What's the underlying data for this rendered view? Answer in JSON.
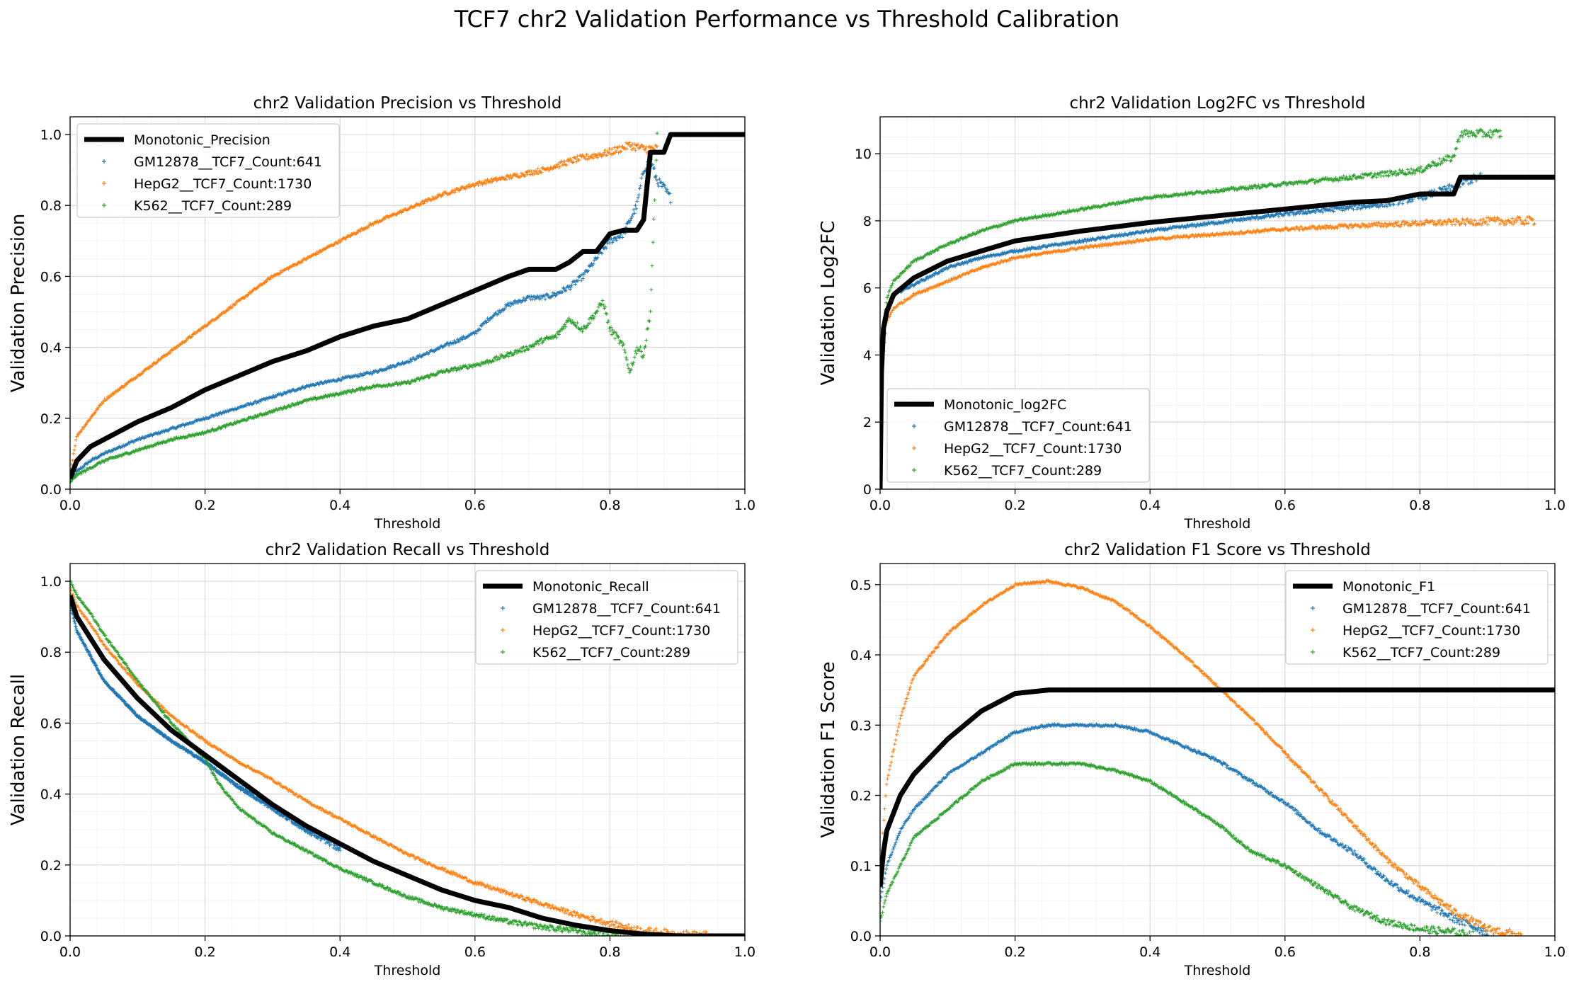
{
  "figure": {
    "suptitle": "TCF7 chr2 Validation Performance vs Threshold Calibration"
  },
  "colors": {
    "GM12878": "#1f77b4",
    "HepG2": "#ff7f0e",
    "K562": "#2ca02c",
    "monotonic": "#000000",
    "grid_major": "#d9d9d9",
    "grid_minor": "#f2f2f2"
  },
  "chart_data": [
    {
      "id": "precision",
      "type": "scatter",
      "title": "chr2 Validation Precision vs Threshold",
      "xlabel": "Threshold",
      "ylabel": "Validation Precision",
      "xlim": [
        0,
        1
      ],
      "ylim": [
        0,
        1.05
      ],
      "xticks": [
        "0.0",
        "0.2",
        "0.4",
        "0.6",
        "0.8",
        "1.0"
      ],
      "yticks": [
        "0.0",
        "0.2",
        "0.4",
        "0.6",
        "0.8",
        "1.0"
      ],
      "grid": true,
      "legend_position": "upper-left",
      "series": [
        {
          "name": "Monotonic_Precision",
          "kind": "line",
          "color_key": "monotonic",
          "x": [
            0,
            0.01,
            0.03,
            0.05,
            0.1,
            0.15,
            0.2,
            0.25,
            0.3,
            0.35,
            0.4,
            0.45,
            0.5,
            0.55,
            0.6,
            0.65,
            0.68,
            0.72,
            0.74,
            0.76,
            0.78,
            0.8,
            0.82,
            0.84,
            0.85,
            0.86,
            0.88,
            0.89,
            0.9,
            1.0
          ],
          "y": [
            0.03,
            0.08,
            0.12,
            0.14,
            0.19,
            0.23,
            0.28,
            0.32,
            0.36,
            0.39,
            0.43,
            0.46,
            0.48,
            0.52,
            0.56,
            0.6,
            0.62,
            0.62,
            0.64,
            0.67,
            0.67,
            0.72,
            0.73,
            0.73,
            0.76,
            0.95,
            0.95,
            1.0,
            1.0,
            1.0
          ]
        },
        {
          "name": "GM12878__TCF7_Count:641",
          "kind": "points",
          "color_key": "GM12878",
          "x": [
            0,
            0.01,
            0.03,
            0.05,
            0.1,
            0.15,
            0.2,
            0.25,
            0.3,
            0.35,
            0.4,
            0.45,
            0.5,
            0.55,
            0.6,
            0.62,
            0.65,
            0.68,
            0.7,
            0.72,
            0.74,
            0.76,
            0.78,
            0.8,
            0.82,
            0.84,
            0.85,
            0.86,
            0.87,
            0.88,
            0.89
          ],
          "y": [
            0.02,
            0.05,
            0.08,
            0.1,
            0.14,
            0.17,
            0.2,
            0.23,
            0.26,
            0.29,
            0.31,
            0.33,
            0.36,
            0.4,
            0.44,
            0.48,
            0.52,
            0.54,
            0.54,
            0.55,
            0.57,
            0.6,
            0.65,
            0.7,
            0.72,
            0.8,
            0.9,
            0.93,
            0.87,
            0.85,
            0.82
          ]
        },
        {
          "name": "HepG2__TCF7_Count:1730",
          "kind": "points",
          "color_key": "HepG2",
          "x": [
            0,
            0.005,
            0.01,
            0.03,
            0.05,
            0.1,
            0.15,
            0.2,
            0.25,
            0.3,
            0.35,
            0.4,
            0.45,
            0.5,
            0.55,
            0.6,
            0.65,
            0.7,
            0.75,
            0.8,
            0.83,
            0.85,
            0.87
          ],
          "y": [
            0.04,
            0.1,
            0.15,
            0.2,
            0.25,
            0.32,
            0.39,
            0.46,
            0.53,
            0.6,
            0.65,
            0.7,
            0.75,
            0.79,
            0.83,
            0.86,
            0.88,
            0.9,
            0.93,
            0.95,
            0.97,
            0.96,
            0.96
          ]
        },
        {
          "name": "K562__TCF7_Count:289",
          "kind": "points",
          "color_key": "K562",
          "x": [
            0,
            0.01,
            0.03,
            0.05,
            0.1,
            0.15,
            0.2,
            0.25,
            0.3,
            0.35,
            0.4,
            0.45,
            0.5,
            0.55,
            0.6,
            0.62,
            0.65,
            0.68,
            0.7,
            0.72,
            0.74,
            0.76,
            0.78,
            0.79,
            0.8,
            0.81,
            0.82,
            0.83,
            0.84,
            0.85,
            0.86,
            0.87
          ],
          "y": [
            0.02,
            0.04,
            0.06,
            0.08,
            0.11,
            0.14,
            0.16,
            0.19,
            0.22,
            0.25,
            0.27,
            0.29,
            0.3,
            0.33,
            0.35,
            0.36,
            0.38,
            0.4,
            0.42,
            0.43,
            0.48,
            0.45,
            0.5,
            0.53,
            0.45,
            0.43,
            0.4,
            0.33,
            0.4,
            0.38,
            0.5,
            1.0
          ]
        }
      ]
    },
    {
      "id": "log2fc",
      "type": "scatter",
      "title": "chr2 Validation Log2FC vs Threshold",
      "xlabel": "Threshold",
      "ylabel": "Validation Log2FC",
      "xlim": [
        0,
        1
      ],
      "ylim": [
        0,
        11.1
      ],
      "xticks": [
        "0.0",
        "0.2",
        "0.4",
        "0.6",
        "0.8",
        "1.0"
      ],
      "yticks": [
        "0",
        "2",
        "4",
        "6",
        "8",
        "10"
      ],
      "grid": true,
      "legend_position": "lower-left",
      "series": [
        {
          "name": "Monotonic_log2FC",
          "kind": "line",
          "color_key": "monotonic",
          "x": [
            0,
            0.002,
            0.005,
            0.01,
            0.02,
            0.05,
            0.1,
            0.15,
            0.2,
            0.3,
            0.4,
            0.5,
            0.6,
            0.7,
            0.75,
            0.8,
            0.85,
            0.86,
            0.87,
            0.9,
            1.0
          ],
          "y": [
            0,
            3.5,
            4.8,
            5.3,
            5.8,
            6.3,
            6.8,
            7.1,
            7.4,
            7.7,
            7.95,
            8.15,
            8.35,
            8.55,
            8.6,
            8.8,
            8.8,
            9.3,
            9.3,
            9.3,
            9.3
          ]
        },
        {
          "name": "GM12878__TCF7_Count:641",
          "kind": "points",
          "color_key": "GM12878",
          "x": [
            0,
            0.01,
            0.02,
            0.05,
            0.1,
            0.15,
            0.2,
            0.3,
            0.4,
            0.5,
            0.6,
            0.7,
            0.75,
            0.8,
            0.85,
            0.87,
            0.89
          ],
          "y": [
            3.5,
            5.3,
            5.8,
            6.1,
            6.6,
            6.9,
            7.1,
            7.4,
            7.7,
            7.95,
            8.2,
            8.4,
            8.5,
            8.7,
            9.0,
            9.2,
            9.3
          ]
        },
        {
          "name": "HepG2__TCF7_Count:1730",
          "kind": "points",
          "color_key": "HepG2",
          "x": [
            0,
            0.01,
            0.02,
            0.05,
            0.1,
            0.15,
            0.2,
            0.3,
            0.4,
            0.5,
            0.6,
            0.7,
            0.8,
            0.9,
            0.97
          ],
          "y": [
            3.0,
            5.0,
            5.4,
            5.8,
            6.2,
            6.6,
            6.9,
            7.2,
            7.45,
            7.6,
            7.75,
            7.85,
            7.93,
            7.98,
            8.0
          ]
        },
        {
          "name": "K562__TCF7_Count:289",
          "kind": "points",
          "color_key": "K562",
          "x": [
            0,
            0.01,
            0.02,
            0.05,
            0.1,
            0.15,
            0.2,
            0.3,
            0.4,
            0.5,
            0.6,
            0.65,
            0.7,
            0.75,
            0.8,
            0.82,
            0.85,
            0.86,
            0.92
          ],
          "y": [
            4.0,
            5.7,
            6.2,
            6.8,
            7.3,
            7.7,
            8.0,
            8.35,
            8.7,
            8.9,
            9.1,
            9.2,
            9.3,
            9.4,
            9.5,
            9.7,
            9.9,
            10.6,
            10.6
          ]
        }
      ]
    },
    {
      "id": "recall",
      "type": "scatter",
      "title": "chr2 Validation Recall vs Threshold",
      "xlabel": "Threshold",
      "ylabel": "Validation Recall",
      "xlim": [
        0,
        1
      ],
      "ylim": [
        0,
        1.05
      ],
      "xticks": [
        "0.0",
        "0.2",
        "0.4",
        "0.6",
        "0.8",
        "1.0"
      ],
      "yticks": [
        "0.0",
        "0.2",
        "0.4",
        "0.6",
        "0.8",
        "1.0"
      ],
      "grid": true,
      "legend_position": "upper-right",
      "series": [
        {
          "name": "Monotonic_Recall",
          "kind": "line",
          "color_key": "monotonic",
          "x": [
            0,
            0.01,
            0.03,
            0.05,
            0.1,
            0.15,
            0.2,
            0.25,
            0.3,
            0.35,
            0.4,
            0.45,
            0.5,
            0.55,
            0.6,
            0.65,
            0.7,
            0.75,
            0.8,
            0.85,
            0.9,
            1.0
          ],
          "y": [
            0.96,
            0.9,
            0.84,
            0.78,
            0.67,
            0.58,
            0.51,
            0.44,
            0.37,
            0.31,
            0.26,
            0.21,
            0.17,
            0.13,
            0.1,
            0.08,
            0.05,
            0.03,
            0.015,
            0.005,
            0.0,
            0.0
          ]
        },
        {
          "name": "GM12878__TCF7_Count:641",
          "kind": "points",
          "color_key": "GM12878",
          "x": [
            0,
            0.01,
            0.03,
            0.05,
            0.1,
            0.15,
            0.2,
            0.25,
            0.3,
            0.35,
            0.4
          ],
          "y": [
            0.94,
            0.86,
            0.79,
            0.72,
            0.62,
            0.55,
            0.49,
            0.42,
            0.36,
            0.3,
            0.25
          ]
        },
        {
          "name": "HepG2__TCF7_Count:1730",
          "kind": "points",
          "color_key": "HepG2",
          "x": [
            0,
            0.01,
            0.03,
            0.05,
            0.1,
            0.15,
            0.2,
            0.25,
            0.3,
            0.35,
            0.4,
            0.45,
            0.5,
            0.55,
            0.6,
            0.65,
            0.7,
            0.75,
            0.8,
            0.85,
            0.9,
            0.95
          ],
          "y": [
            0.98,
            0.93,
            0.88,
            0.82,
            0.71,
            0.62,
            0.55,
            0.49,
            0.44,
            0.38,
            0.33,
            0.28,
            0.23,
            0.19,
            0.15,
            0.12,
            0.09,
            0.06,
            0.035,
            0.015,
            0.005,
            0.0
          ]
        },
        {
          "name": "K562__TCF7_Count:289",
          "kind": "points",
          "color_key": "K562",
          "x": [
            0,
            0.01,
            0.03,
            0.05,
            0.1,
            0.15,
            0.2,
            0.22,
            0.25,
            0.3,
            0.35,
            0.4,
            0.45,
            0.5,
            0.55,
            0.6,
            0.65,
            0.7,
            0.75,
            0.8,
            0.85
          ],
          "y": [
            1.0,
            0.96,
            0.91,
            0.85,
            0.72,
            0.6,
            0.5,
            0.43,
            0.36,
            0.29,
            0.24,
            0.19,
            0.15,
            0.11,
            0.08,
            0.06,
            0.04,
            0.025,
            0.015,
            0.005,
            0.0
          ]
        }
      ]
    },
    {
      "id": "f1",
      "type": "scatter",
      "title": "chr2 Validation F1 Score vs Threshold",
      "xlabel": "Threshold",
      "ylabel": "Validation F1 Score",
      "xlim": [
        0,
        1
      ],
      "ylim": [
        0,
        0.53
      ],
      "xticks": [
        "0.0",
        "0.2",
        "0.4",
        "0.6",
        "0.8",
        "1.0"
      ],
      "yticks": [
        "0.0",
        "0.1",
        "0.2",
        "0.3",
        "0.4",
        "0.5"
      ],
      "grid": true,
      "legend_position": "upper-right",
      "series": [
        {
          "name": "Monotonic_F1",
          "kind": "line",
          "color_key": "monotonic",
          "x": [
            0,
            0.005,
            0.01,
            0.03,
            0.05,
            0.1,
            0.15,
            0.18,
            0.2,
            0.22,
            0.25,
            0.3,
            0.5,
            1.0
          ],
          "y": [
            0.07,
            0.12,
            0.15,
            0.2,
            0.23,
            0.28,
            0.32,
            0.335,
            0.345,
            0.347,
            0.35,
            0.35,
            0.35,
            0.35
          ]
        },
        {
          "name": "GM12878__TCF7_Count:641",
          "kind": "points",
          "color_key": "GM12878",
          "x": [
            0,
            0.01,
            0.03,
            0.05,
            0.1,
            0.15,
            0.2,
            0.25,
            0.3,
            0.35,
            0.4,
            0.45,
            0.5,
            0.55,
            0.6,
            0.65,
            0.7,
            0.75,
            0.8,
            0.85,
            0.9
          ],
          "y": [
            0.05,
            0.1,
            0.15,
            0.18,
            0.23,
            0.26,
            0.29,
            0.3,
            0.3,
            0.3,
            0.29,
            0.27,
            0.25,
            0.22,
            0.19,
            0.15,
            0.12,
            0.08,
            0.05,
            0.025,
            0.005
          ]
        },
        {
          "name": "HepG2__TCF7_Count:1730",
          "kind": "points",
          "color_key": "HepG2",
          "x": [
            0,
            0.005,
            0.01,
            0.03,
            0.05,
            0.1,
            0.15,
            0.2,
            0.25,
            0.3,
            0.35,
            0.4,
            0.45,
            0.5,
            0.55,
            0.6,
            0.65,
            0.7,
            0.75,
            0.8,
            0.85,
            0.9,
            0.95
          ],
          "y": [
            0.08,
            0.16,
            0.22,
            0.31,
            0.37,
            0.43,
            0.47,
            0.5,
            0.505,
            0.495,
            0.475,
            0.44,
            0.4,
            0.355,
            0.31,
            0.26,
            0.21,
            0.16,
            0.11,
            0.07,
            0.035,
            0.01,
            0.0
          ]
        },
        {
          "name": "K562__TCF7_Count:289",
          "kind": "points",
          "color_key": "K562",
          "x": [
            0,
            0.01,
            0.03,
            0.05,
            0.1,
            0.15,
            0.2,
            0.25,
            0.3,
            0.35,
            0.4,
            0.45,
            0.5,
            0.55,
            0.6,
            0.65,
            0.7,
            0.75,
            0.8,
            0.85,
            0.88
          ],
          "y": [
            0.02,
            0.06,
            0.1,
            0.14,
            0.18,
            0.22,
            0.245,
            0.245,
            0.245,
            0.235,
            0.22,
            0.19,
            0.16,
            0.12,
            0.1,
            0.07,
            0.04,
            0.02,
            0.01,
            0.005,
            0.0
          ]
        }
      ]
    }
  ]
}
